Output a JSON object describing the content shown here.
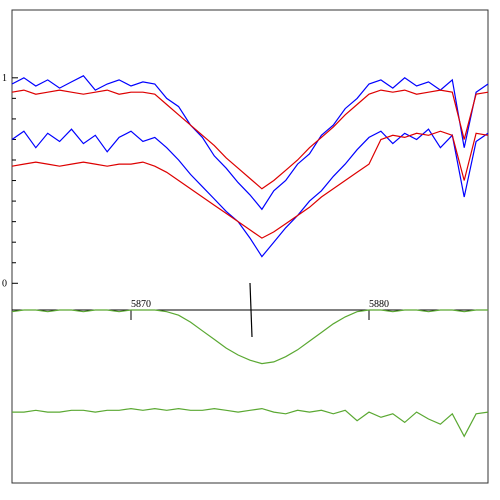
{
  "chart_data": [
    {
      "type": "line",
      "xlim": [
        5865,
        5885
      ],
      "ylim": [
        -0.13,
        1.33
      ],
      "yticks": [
        0,
        1
      ],
      "yminorticks": [
        0.1,
        0.2,
        0.3,
        0.4,
        0.5,
        0.6,
        0.7,
        0.8,
        0.9
      ],
      "x": [
        5865,
        5865.5,
        5866,
        5866.5,
        5867,
        5867.5,
        5868,
        5868.5,
        5869,
        5869.5,
        5870,
        5870.5,
        5871,
        5871.5,
        5872,
        5872.5,
        5873,
        5873.5,
        5874,
        5874.5,
        5875,
        5875.5,
        5876,
        5876.5,
        5877,
        5877.5,
        5878,
        5878.5,
        5879,
        5879.5,
        5880,
        5880.5,
        5881,
        5881.5,
        5882,
        5882.5,
        5883,
        5883.5,
        5884,
        5884.5,
        5885
      ],
      "series": [
        {
          "color": "#0000ff",
          "values": [
            0.97,
            1.0,
            0.96,
            0.99,
            0.95,
            0.98,
            1.01,
            0.94,
            0.97,
            0.99,
            0.96,
            0.98,
            0.97,
            0.9,
            0.86,
            0.77,
            0.71,
            0.62,
            0.56,
            0.49,
            0.43,
            0.36,
            0.45,
            0.5,
            0.58,
            0.63,
            0.72,
            0.77,
            0.85,
            0.9,
            0.97,
            0.99,
            0.95,
            1.0,
            0.96,
            0.98,
            0.94,
            0.99,
            0.66,
            0.93,
            0.97
          ]
        },
        {
          "color": "#0000ff",
          "values": [
            0.7,
            0.74,
            0.66,
            0.73,
            0.69,
            0.75,
            0.68,
            0.72,
            0.64,
            0.71,
            0.74,
            0.69,
            0.71,
            0.66,
            0.6,
            0.53,
            0.47,
            0.41,
            0.35,
            0.3,
            0.22,
            0.13,
            0.2,
            0.27,
            0.33,
            0.4,
            0.45,
            0.52,
            0.58,
            0.65,
            0.71,
            0.74,
            0.68,
            0.73,
            0.7,
            0.75,
            0.66,
            0.72,
            0.42,
            0.69,
            0.73
          ]
        },
        {
          "color": "#dd0000",
          "values": [
            0.93,
            0.94,
            0.92,
            0.93,
            0.94,
            0.93,
            0.92,
            0.93,
            0.94,
            0.92,
            0.93,
            0.93,
            0.92,
            0.87,
            0.82,
            0.77,
            0.72,
            0.67,
            0.61,
            0.56,
            0.51,
            0.46,
            0.5,
            0.55,
            0.6,
            0.66,
            0.71,
            0.76,
            0.82,
            0.87,
            0.92,
            0.94,
            0.93,
            0.94,
            0.92,
            0.93,
            0.94,
            0.93,
            0.7,
            0.92,
            0.93
          ]
        },
        {
          "color": "#dd0000",
          "values": [
            0.57,
            0.58,
            0.59,
            0.58,
            0.57,
            0.58,
            0.59,
            0.58,
            0.57,
            0.58,
            0.58,
            0.59,
            0.57,
            0.54,
            0.5,
            0.46,
            0.42,
            0.38,
            0.34,
            0.3,
            0.26,
            0.22,
            0.25,
            0.29,
            0.33,
            0.37,
            0.42,
            0.46,
            0.5,
            0.54,
            0.58,
            0.7,
            0.72,
            0.71,
            0.73,
            0.72,
            0.74,
            0.72,
            0.5,
            0.73,
            0.72
          ]
        }
      ]
    },
    {
      "type": "line",
      "xlim": [
        5865,
        5885
      ],
      "ylim": [
        0,
        1
      ],
      "xticks": [
        5870,
        5880
      ],
      "marker_x": 5875,
      "x": [
        5865,
        5865.5,
        5866,
        5866.5,
        5867,
        5867.5,
        5868,
        5868.5,
        5869,
        5869.5,
        5870,
        5870.5,
        5871,
        5871.5,
        5872,
        5872.5,
        5873,
        5873.5,
        5874,
        5874.5,
        5875,
        5875.5,
        5876,
        5876.5,
        5877,
        5877.5,
        5878,
        5878.5,
        5879,
        5879.5,
        5880,
        5880.5,
        5881,
        5881.5,
        5882,
        5882.5,
        5883,
        5883.5,
        5884,
        5884.5,
        5885
      ],
      "series": [
        {
          "color": "#5aa832",
          "values": [
            0.99,
            1,
            1,
            0.99,
            1,
            1,
            0.99,
            1,
            1,
            0.99,
            1,
            1,
            1,
            0.99,
            0.97,
            0.93,
            0.88,
            0.83,
            0.78,
            0.74,
            0.71,
            0.69,
            0.7,
            0.73,
            0.77,
            0.82,
            0.87,
            0.92,
            0.96,
            0.99,
            1,
            1,
            0.99,
            1,
            1,
            0.99,
            1,
            1,
            0.99,
            1,
            1
          ]
        },
        {
          "color": "#5aa832",
          "values": [
            0.41,
            0.41,
            0.42,
            0.41,
            0.41,
            0.42,
            0.42,
            0.41,
            0.42,
            0.42,
            0.43,
            0.42,
            0.43,
            0.42,
            0.43,
            0.42,
            0.42,
            0.43,
            0.42,
            0.41,
            0.42,
            0.43,
            0.41,
            0.4,
            0.42,
            0.41,
            0.42,
            0.4,
            0.42,
            0.36,
            0.41,
            0.38,
            0.4,
            0.35,
            0.41,
            0.37,
            0.34,
            0.4,
            0.27,
            0.4,
            0.41
          ]
        }
      ]
    }
  ]
}
